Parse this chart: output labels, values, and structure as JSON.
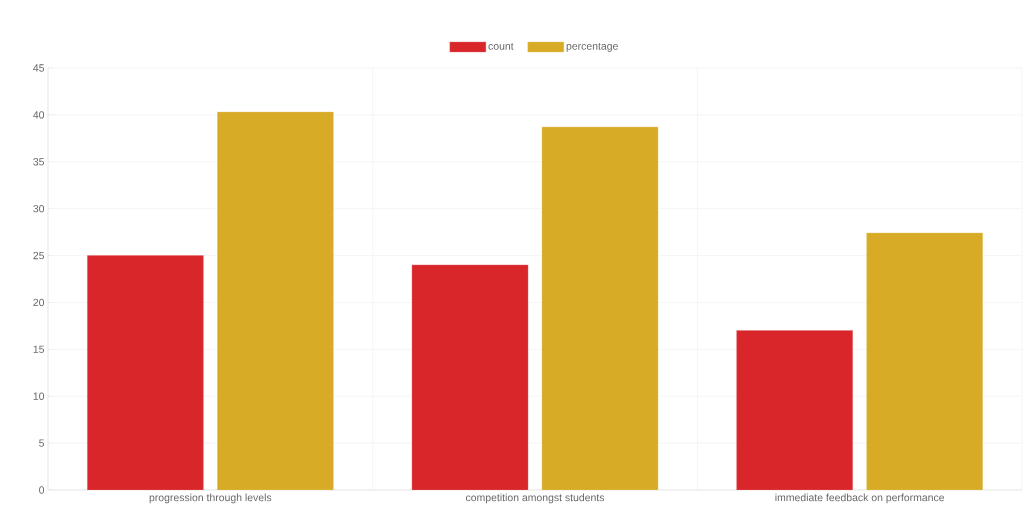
{
  "chart_data": {
    "type": "bar",
    "categories": [
      "progression through levels",
      "competition amongst students",
      "immediate feedback on performance"
    ],
    "series": [
      {
        "name": "count",
        "color": "#d9262a",
        "values": [
          25,
          24,
          17
        ]
      },
      {
        "name": "percentage",
        "color": "#d8ab26",
        "values": [
          40.3,
          38.7,
          27.4
        ]
      }
    ],
    "ylim": [
      0,
      45
    ],
    "yticks": [
      0,
      5,
      10,
      15,
      20,
      25,
      30,
      35,
      40,
      45
    ],
    "grid": true,
    "legend": "top"
  }
}
